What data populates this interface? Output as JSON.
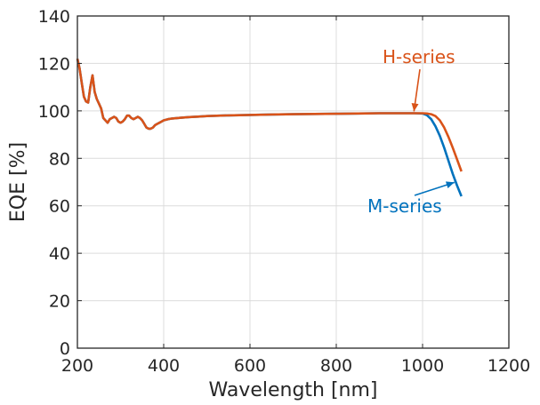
{
  "chart_data": {
    "type": "line",
    "title": "",
    "xlabel": "Wavelength [nm]",
    "ylabel": "EQE [%]",
    "xlim": [
      200,
      1200
    ],
    "ylim": [
      0,
      140
    ],
    "xticks": [
      200,
      400,
      600,
      800,
      1000,
      1200
    ],
    "yticks": [
      0,
      20,
      40,
      60,
      80,
      100,
      120,
      140
    ],
    "grid": true,
    "legend": "none",
    "colors": {
      "H-series": "#d95319",
      "M-series": "#0072bd"
    },
    "series": [
      {
        "name": "M-series",
        "color": "#0072bd",
        "x": [
          200,
          205,
          210,
          215,
          220,
          225,
          230,
          235,
          240,
          245,
          250,
          255,
          260,
          265,
          270,
          275,
          280,
          285,
          290,
          295,
          300,
          305,
          310,
          315,
          320,
          325,
          330,
          335,
          340,
          345,
          350,
          355,
          360,
          365,
          370,
          375,
          380,
          385,
          390,
          395,
          400,
          410,
          420,
          440,
          460,
          480,
          500,
          550,
          600,
          650,
          700,
          750,
          800,
          850,
          900,
          950,
          980,
          1000,
          1010,
          1020,
          1030,
          1040,
          1050,
          1060,
          1070,
          1080,
          1090
        ],
        "y": [
          122,
          118,
          112,
          106,
          104,
          103.5,
          110,
          115,
          108,
          105,
          103,
          101,
          97,
          96,
          95,
          96.5,
          97,
          97.5,
          97,
          95.5,
          95,
          95.5,
          96.5,
          98,
          98,
          97,
          96.5,
          97,
          97.5,
          97,
          96,
          94.5,
          93,
          92.5,
          92.5,
          93,
          94,
          94.5,
          95,
          95.5,
          96,
          96.5,
          96.8,
          97.1,
          97.4,
          97.6,
          97.8,
          98.1,
          98.3,
          98.5,
          98.6,
          98.7,
          98.8,
          98.9,
          99,
          99,
          99,
          98.9,
          98.2,
          96.5,
          93.5,
          89.5,
          84.5,
          79,
          73.5,
          68.5,
          64
        ]
      },
      {
        "name": "H-series",
        "color": "#d95319",
        "x": [
          200,
          205,
          210,
          215,
          220,
          225,
          230,
          235,
          240,
          245,
          250,
          255,
          260,
          265,
          270,
          275,
          280,
          285,
          290,
          295,
          300,
          305,
          310,
          315,
          320,
          325,
          330,
          335,
          340,
          345,
          350,
          355,
          360,
          365,
          370,
          375,
          380,
          385,
          390,
          395,
          400,
          410,
          420,
          440,
          460,
          480,
          500,
          550,
          600,
          650,
          700,
          750,
          800,
          850,
          900,
          950,
          980,
          1000,
          1010,
          1020,
          1030,
          1040,
          1050,
          1060,
          1070,
          1080,
          1090
        ],
        "y": [
          122,
          118,
          112,
          106,
          104,
          103.5,
          110,
          115,
          108,
          105,
          103,
          101,
          97,
          96,
          95,
          96.5,
          97,
          97.5,
          97,
          95.5,
          95,
          95.5,
          96.5,
          98,
          98,
          97,
          96.5,
          97,
          97.5,
          97,
          96,
          94.5,
          93,
          92.5,
          92.5,
          93,
          94,
          94.5,
          95,
          95.5,
          96,
          96.5,
          96.8,
          97.1,
          97.4,
          97.6,
          97.8,
          98.1,
          98.3,
          98.5,
          98.6,
          98.7,
          98.8,
          98.9,
          99,
          99,
          99,
          99,
          98.9,
          98.6,
          97.8,
          96,
          93,
          89,
          84.5,
          79.5,
          74.5
        ]
      }
    ],
    "annotations": [
      {
        "text": "H-series",
        "color": "#d95319",
        "arrow_to": [
          980,
          99
        ]
      },
      {
        "text": "M-series",
        "color": "#0072bd",
        "arrow_to": [
          1082,
          69.5
        ]
      }
    ]
  }
}
